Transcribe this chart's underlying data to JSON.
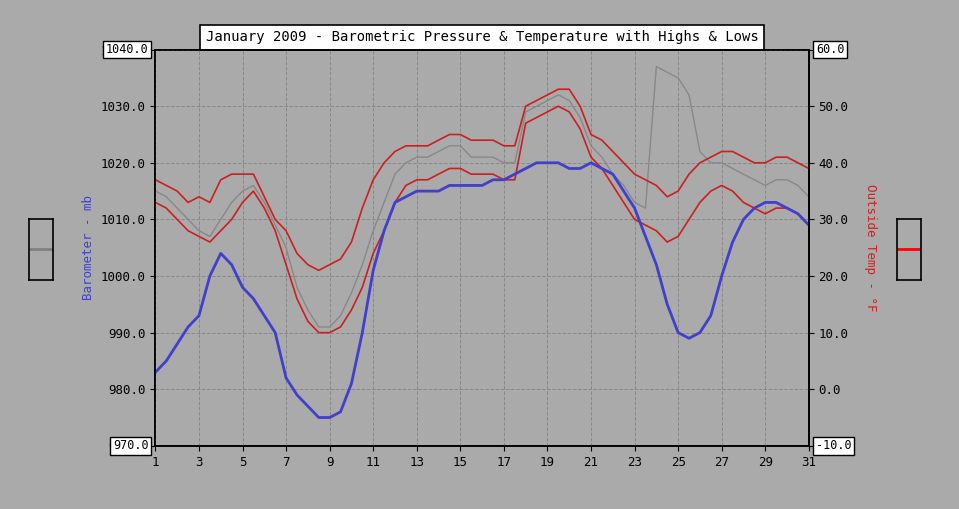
{
  "title": "January 2009 - Barometric Pressure & Temperature with Highs & Lows",
  "bg_color": "#aaaaaa",
  "plot_bg_color": "#aaaaaa",
  "left_ylabel": "Barometer - mb",
  "right_ylabel": "Outside Temp - °F",
  "xlabel": "",
  "ylim_left": [
    970.0,
    1040.0
  ],
  "ylim_right": [
    -10.0,
    60.0
  ],
  "yticks_left": [
    970.0,
    980.0,
    990.0,
    1000.0,
    1010.0,
    1020.0,
    1030.0,
    1040.0
  ],
  "yticks_right": [
    -10.0,
    0.0,
    10.0,
    20.0,
    30.0,
    40.0,
    50.0,
    60.0
  ],
  "xticks": [
    1,
    3,
    5,
    7,
    9,
    11,
    13,
    15,
    17,
    19,
    21,
    23,
    25,
    27,
    29,
    31
  ],
  "xlim": [
    1,
    31
  ],
  "grid_color": "#888888",
  "pressure_color": "#4040cc",
  "temp_high_color": "#cc2020",
  "temp_low_color": "#cc2020",
  "temp_color": "#888888",
  "pressure_linewidth": 2.0,
  "temp_linewidth": 1.0,
  "temp_hi_low_linewidth": 1.2,
  "pressure_days": [
    1,
    1.5,
    2,
    2.5,
    3,
    3.5,
    4,
    4.5,
    5,
    5.5,
    6,
    6.5,
    7,
    7.5,
    8,
    8.5,
    9,
    9.5,
    10,
    10.5,
    11,
    11.5,
    12,
    12.5,
    13,
    13.5,
    14,
    14.5,
    15,
    15.5,
    16,
    16.5,
    17,
    17.5,
    18,
    18.5,
    19,
    19.5,
    20,
    20.5,
    21,
    21.5,
    22,
    22.5,
    23,
    23.5,
    24,
    24.5,
    25,
    25.5,
    26,
    26.5,
    27,
    27.5,
    28,
    28.5,
    29,
    29.5,
    30,
    30.5,
    31
  ],
  "pressure_values": [
    983,
    985,
    988,
    991,
    993,
    1000,
    1004,
    1002,
    998,
    996,
    993,
    990,
    982,
    979,
    977,
    975,
    975,
    976,
    981,
    990,
    1001,
    1008,
    1013,
    1014,
    1015,
    1015,
    1015,
    1016,
    1016,
    1016,
    1016,
    1017,
    1017,
    1018,
    1019,
    1020,
    1020,
    1020,
    1019,
    1019,
    1020,
    1019,
    1018,
    1015,
    1012,
    1007,
    1002,
    995,
    990,
    989,
    990,
    993,
    1000,
    1006,
    1010,
    1012,
    1013,
    1013,
    1012,
    1011,
    1009
  ],
  "temp_hi_days": [
    1,
    1.5,
    2,
    2.5,
    3,
    3.5,
    4,
    4.5,
    5,
    5.5,
    6,
    6.5,
    7,
    7.5,
    8,
    8.5,
    9,
    9.5,
    10,
    10.5,
    11,
    11.5,
    12,
    12.5,
    13,
    13.5,
    14,
    14.5,
    15,
    15.5,
    16,
    16.5,
    17,
    17.5,
    18,
    18.5,
    19,
    19.5,
    20,
    20.5,
    21,
    21.5,
    22,
    22.5,
    23,
    23.5,
    24,
    24.5,
    25,
    25.5,
    26,
    26.5,
    27,
    27.5,
    28,
    28.5,
    29,
    29.5,
    30,
    30.5,
    31
  ],
  "temp_hi_values": [
    37,
    36,
    35,
    33,
    34,
    33,
    37,
    38,
    38,
    38,
    34,
    30,
    28,
    24,
    22,
    21,
    22,
    23,
    26,
    32,
    37,
    40,
    42,
    43,
    43,
    43,
    44,
    45,
    45,
    44,
    44,
    44,
    43,
    43,
    50,
    51,
    52,
    53,
    53,
    50,
    45,
    44,
    42,
    40,
    38,
    37,
    36,
    34,
    35,
    38,
    40,
    41,
    42,
    42,
    41,
    40,
    40,
    41,
    41,
    40,
    39
  ],
  "temp_lo_days": [
    1,
    1.5,
    2,
    2.5,
    3,
    3.5,
    4,
    4.5,
    5,
    5.5,
    6,
    6.5,
    7,
    7.5,
    8,
    8.5,
    9,
    9.5,
    10,
    10.5,
    11,
    11.5,
    12,
    12.5,
    13,
    13.5,
    14,
    14.5,
    15,
    15.5,
    16,
    16.5,
    17,
    17.5,
    18,
    18.5,
    19,
    19.5,
    20,
    20.5,
    21,
    21.5,
    22,
    22.5,
    23,
    23.5,
    24,
    24.5,
    25,
    25.5,
    26,
    26.5,
    27,
    27.5,
    28,
    28.5,
    29,
    29.5,
    30,
    30.5,
    31
  ],
  "temp_lo_values": [
    33,
    32,
    30,
    28,
    27,
    26,
    28,
    30,
    33,
    35,
    32,
    28,
    22,
    16,
    12,
    10,
    10,
    11,
    14,
    18,
    24,
    28,
    33,
    36,
    37,
    37,
    38,
    39,
    39,
    38,
    38,
    38,
    37,
    37,
    47,
    48,
    49,
    50,
    49,
    46,
    41,
    39,
    36,
    33,
    30,
    29,
    28,
    26,
    27,
    30,
    33,
    35,
    36,
    35,
    33,
    32,
    31,
    32,
    32,
    31,
    29
  ],
  "temp_gray_days": [
    1,
    1.5,
    2,
    2.5,
    3,
    3.5,
    4,
    4.5,
    5,
    5.5,
    6,
    6.5,
    7,
    7.5,
    8,
    8.5,
    9,
    9.5,
    10,
    10.5,
    11,
    11.5,
    12,
    12.5,
    13,
    13.5,
    14,
    14.5,
    15,
    15.5,
    16,
    16.5,
    17,
    17.5,
    18,
    18.5,
    19,
    19.5,
    20,
    20.5,
    21,
    21.5,
    22,
    22.5,
    23,
    23.5,
    24,
    24.5,
    25,
    25.5,
    26,
    26.5,
    27,
    27.5,
    28,
    28.5,
    29,
    29.5,
    30,
    30.5,
    31
  ],
  "temp_gray_values": [
    35,
    34,
    32,
    30,
    28,
    27,
    30,
    33,
    35,
    36,
    33,
    29,
    25,
    18,
    14,
    11,
    11,
    13,
    17,
    22,
    28,
    33,
    38,
    40,
    41,
    41,
    42,
    43,
    43,
    41,
    41,
    41,
    40,
    40,
    49,
    50,
    51,
    52,
    51,
    48,
    43,
    41,
    38,
    36,
    33,
    32,
    57,
    56,
    55,
    52,
    42,
    40,
    40,
    39,
    38,
    37,
    36,
    37,
    37,
    36,
    34
  ]
}
